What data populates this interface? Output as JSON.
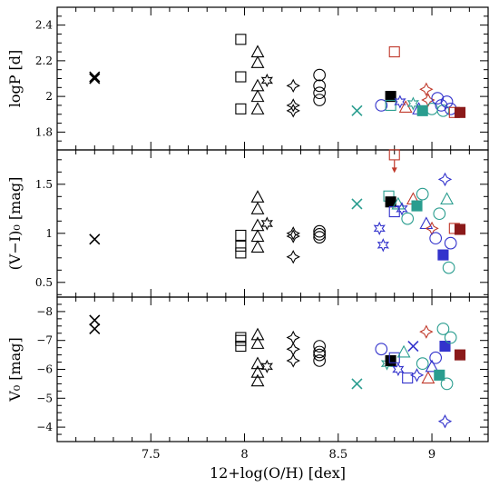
{
  "chart_data": [
    {
      "type": "scatter",
      "panel": "top",
      "ylabel": "logP [d]",
      "ylim": [
        1.7,
        2.5
      ],
      "yticks": [
        1.8,
        2.0,
        2.2,
        2.4
      ],
      "yticklabels": [
        "1.8",
        "2",
        "2.2",
        "2.4"
      ],
      "xlim": [
        7.0,
        9.3
      ],
      "points": [
        {
          "x": 7.2,
          "y": 2.11,
          "marker": "x",
          "color": "#000000"
        },
        {
          "x": 7.2,
          "y": 2.1,
          "marker": "x",
          "color": "#000000"
        },
        {
          "x": 7.98,
          "y": 2.32,
          "marker": "square",
          "color": "#000000"
        },
        {
          "x": 7.98,
          "y": 2.11,
          "marker": "square",
          "color": "#000000"
        },
        {
          "x": 7.98,
          "y": 1.93,
          "marker": "square",
          "color": "#000000"
        },
        {
          "x": 8.07,
          "y": 2.25,
          "marker": "triangle",
          "color": "#000000"
        },
        {
          "x": 8.07,
          "y": 2.19,
          "marker": "triangle",
          "color": "#000000"
        },
        {
          "x": 8.07,
          "y": 2.06,
          "marker": "triangle",
          "color": "#000000"
        },
        {
          "x": 8.07,
          "y": 2.0,
          "marker": "triangle",
          "color": "#000000"
        },
        {
          "x": 8.07,
          "y": 1.93,
          "marker": "triangle",
          "color": "#000000"
        },
        {
          "x": 8.12,
          "y": 2.09,
          "marker": "star6",
          "color": "#000000"
        },
        {
          "x": 8.26,
          "y": 2.06,
          "marker": "star4",
          "color": "#000000"
        },
        {
          "x": 8.26,
          "y": 1.95,
          "marker": "star4",
          "color": "#000000"
        },
        {
          "x": 8.26,
          "y": 1.92,
          "marker": "star4",
          "color": "#000000"
        },
        {
          "x": 8.4,
          "y": 2.12,
          "marker": "circle",
          "color": "#000000"
        },
        {
          "x": 8.4,
          "y": 2.06,
          "marker": "circle",
          "color": "#000000"
        },
        {
          "x": 8.4,
          "y": 2.02,
          "marker": "circle",
          "color": "#000000"
        },
        {
          "x": 8.4,
          "y": 1.98,
          "marker": "circle",
          "color": "#000000"
        },
        {
          "x": 8.6,
          "y": 1.92,
          "marker": "x",
          "color": "#2a9d8f"
        },
        {
          "x": 8.73,
          "y": 1.95,
          "marker": "circle",
          "color": "#3333cc"
        },
        {
          "x": 8.78,
          "y": 2.0,
          "marker": "filled-square",
          "color": "#000000"
        },
        {
          "x": 8.78,
          "y": 1.95,
          "marker": "square",
          "color": "#2a9d8f"
        },
        {
          "x": 8.8,
          "y": 2.25,
          "marker": "square",
          "color": "#c0392b"
        },
        {
          "x": 8.83,
          "y": 1.97,
          "marker": "star6",
          "color": "#3333cc"
        },
        {
          "x": 8.86,
          "y": 1.94,
          "marker": "triangle",
          "color": "#c0392b"
        },
        {
          "x": 8.9,
          "y": 1.96,
          "marker": "star6",
          "color": "#2a9d8f"
        },
        {
          "x": 8.93,
          "y": 1.93,
          "marker": "triangle",
          "color": "#3333cc"
        },
        {
          "x": 8.95,
          "y": 1.92,
          "marker": "filled-square",
          "color": "#2a9d8f"
        },
        {
          "x": 8.97,
          "y": 2.04,
          "marker": "star4",
          "color": "#c0392b"
        },
        {
          "x": 8.98,
          "y": 1.98,
          "marker": "star4",
          "color": "#c0392b"
        },
        {
          "x": 9.0,
          "y": 1.93,
          "marker": "circle",
          "color": "#2a9d8f"
        },
        {
          "x": 9.03,
          "y": 1.99,
          "marker": "circle",
          "color": "#3333cc"
        },
        {
          "x": 9.05,
          "y": 1.95,
          "marker": "circle",
          "color": "#3333cc"
        },
        {
          "x": 9.06,
          "y": 1.92,
          "marker": "circle",
          "color": "#2a9d8f"
        },
        {
          "x": 9.08,
          "y": 1.97,
          "marker": "circle",
          "color": "#3333cc"
        },
        {
          "x": 9.1,
          "y": 1.93,
          "marker": "circle",
          "color": "#3333cc"
        },
        {
          "x": 9.12,
          "y": 1.91,
          "marker": "square",
          "color": "#c0392b"
        },
        {
          "x": 9.15,
          "y": 1.91,
          "marker": "filled-square",
          "color": "#8b1a1a"
        }
      ]
    },
    {
      "type": "scatter",
      "panel": "middle",
      "ylabel": "(V−I)₀ [mag]",
      "ylim": [
        0.35,
        1.85
      ],
      "yticks": [
        0.5,
        1.0,
        1.5
      ],
      "yticklabels": [
        "0.5",
        "1",
        "1.5"
      ],
      "xlim": [
        7.0,
        9.3
      ],
      "points": [
        {
          "x": 7.2,
          "y": 0.94,
          "marker": "x",
          "color": "#000000"
        },
        {
          "x": 7.98,
          "y": 0.98,
          "marker": "square",
          "color": "#000000"
        },
        {
          "x": 7.98,
          "y": 0.87,
          "marker": "square",
          "color": "#000000"
        },
        {
          "x": 7.98,
          "y": 0.8,
          "marker": "square",
          "color": "#000000"
        },
        {
          "x": 8.07,
          "y": 1.37,
          "marker": "triangle",
          "color": "#000000"
        },
        {
          "x": 8.07,
          "y": 1.25,
          "marker": "triangle",
          "color": "#000000"
        },
        {
          "x": 8.07,
          "y": 1.08,
          "marker": "triangle",
          "color": "#000000"
        },
        {
          "x": 8.07,
          "y": 0.97,
          "marker": "triangle",
          "color": "#000000"
        },
        {
          "x": 8.07,
          "y": 0.86,
          "marker": "triangle",
          "color": "#000000"
        },
        {
          "x": 8.12,
          "y": 1.1,
          "marker": "star6",
          "color": "#000000"
        },
        {
          "x": 8.26,
          "y": 1.0,
          "marker": "star4",
          "color": "#000000"
        },
        {
          "x": 8.26,
          "y": 0.97,
          "marker": "star4",
          "color": "#000000"
        },
        {
          "x": 8.26,
          "y": 0.76,
          "marker": "star4",
          "color": "#000000"
        },
        {
          "x": 8.4,
          "y": 1.02,
          "marker": "circle",
          "color": "#000000"
        },
        {
          "x": 8.4,
          "y": 0.99,
          "marker": "circle",
          "color": "#000000"
        },
        {
          "x": 8.4,
          "y": 0.96,
          "marker": "circle",
          "color": "#000000"
        },
        {
          "x": 8.6,
          "y": 1.3,
          "marker": "x",
          "color": "#2a9d8f"
        },
        {
          "x": 8.72,
          "y": 1.05,
          "marker": "star6",
          "color": "#3333cc"
        },
        {
          "x": 8.74,
          "y": 0.88,
          "marker": "star6",
          "color": "#3333cc"
        },
        {
          "x": 8.77,
          "y": 1.38,
          "marker": "square",
          "color": "#2a9d8f"
        },
        {
          "x": 8.78,
          "y": 1.32,
          "marker": "filled-square",
          "color": "#000000"
        },
        {
          "x": 8.8,
          "y": 1.22,
          "marker": "square",
          "color": "#3333cc"
        },
        {
          "x": 8.8,
          "y": 1.8,
          "marker": "square",
          "color": "#c0392b"
        },
        {
          "x": 8.82,
          "y": 1.3,
          "marker": "triangle",
          "color": "#2a9d8f"
        },
        {
          "x": 8.84,
          "y": 1.25,
          "marker": "star6",
          "color": "#3333cc"
        },
        {
          "x": 8.87,
          "y": 1.15,
          "marker": "circle",
          "color": "#2a9d8f"
        },
        {
          "x": 8.9,
          "y": 1.35,
          "marker": "triangle",
          "color": "#c0392b"
        },
        {
          "x": 8.92,
          "y": 1.28,
          "marker": "filled-square",
          "color": "#2a9d8f"
        },
        {
          "x": 8.95,
          "y": 1.4,
          "marker": "circle",
          "color": "#2a9d8f"
        },
        {
          "x": 8.97,
          "y": 1.1,
          "marker": "triangle",
          "color": "#3333cc"
        },
        {
          "x": 9.0,
          "y": 1.05,
          "marker": "star4",
          "color": "#c0392b"
        },
        {
          "x": 9.02,
          "y": 0.95,
          "marker": "circle",
          "color": "#3333cc"
        },
        {
          "x": 9.04,
          "y": 1.2,
          "marker": "circle",
          "color": "#2a9d8f"
        },
        {
          "x": 9.06,
          "y": 0.78,
          "marker": "filled-square",
          "color": "#3333cc"
        },
        {
          "x": 9.07,
          "y": 1.55,
          "marker": "star4",
          "color": "#3333cc"
        },
        {
          "x": 9.08,
          "y": 1.35,
          "marker": "triangle",
          "color": "#2a9d8f"
        },
        {
          "x": 9.09,
          "y": 0.65,
          "marker": "circle",
          "color": "#2a9d8f"
        },
        {
          "x": 9.1,
          "y": 0.9,
          "marker": "circle",
          "color": "#3333cc"
        },
        {
          "x": 9.12,
          "y": 1.05,
          "marker": "square",
          "color": "#c0392b"
        },
        {
          "x": 9.15,
          "y": 1.04,
          "marker": "filled-square",
          "color": "#8b1a1a"
        }
      ]
    },
    {
      "type": "scatter",
      "panel": "bottom",
      "ylabel": "V₀ [mag]",
      "ylim": [
        -3.5,
        -8.5
      ],
      "yticks": [
        -4,
        -5,
        -6,
        -7,
        -8
      ],
      "yticklabels": [
        "−4",
        "−5",
        "−6",
        "−7",
        "−8"
      ],
      "xlim": [
        7.0,
        9.3
      ],
      "xticks": [
        7.5,
        8.0,
        8.5,
        9.0
      ],
      "xticklabels": [
        "7.5",
        "8",
        "8.5",
        "9"
      ],
      "xlabel": "12+log(O/H) [dex]",
      "points": [
        {
          "x": 7.2,
          "y": -7.7,
          "marker": "x",
          "color": "#000000"
        },
        {
          "x": 7.2,
          "y": -7.4,
          "marker": "x",
          "color": "#000000"
        },
        {
          "x": 7.98,
          "y": -7.1,
          "marker": "square",
          "color": "#000000"
        },
        {
          "x": 7.98,
          "y": -7.0,
          "marker": "square",
          "color": "#000000"
        },
        {
          "x": 7.98,
          "y": -6.8,
          "marker": "square",
          "color": "#000000"
        },
        {
          "x": 8.07,
          "y": -7.2,
          "marker": "triangle",
          "color": "#000000"
        },
        {
          "x": 8.07,
          "y": -6.9,
          "marker": "triangle",
          "color": "#000000"
        },
        {
          "x": 8.07,
          "y": -6.2,
          "marker": "triangle",
          "color": "#000000"
        },
        {
          "x": 8.07,
          "y": -5.9,
          "marker": "triangle",
          "color": "#000000"
        },
        {
          "x": 8.07,
          "y": -5.6,
          "marker": "triangle",
          "color": "#000000"
        },
        {
          "x": 8.12,
          "y": -6.1,
          "marker": "star6",
          "color": "#000000"
        },
        {
          "x": 8.26,
          "y": -7.1,
          "marker": "star4",
          "color": "#000000"
        },
        {
          "x": 8.26,
          "y": -6.7,
          "marker": "star4",
          "color": "#000000"
        },
        {
          "x": 8.26,
          "y": -6.3,
          "marker": "star4",
          "color": "#000000"
        },
        {
          "x": 8.4,
          "y": -6.8,
          "marker": "circle",
          "color": "#000000"
        },
        {
          "x": 8.4,
          "y": -6.6,
          "marker": "circle",
          "color": "#000000"
        },
        {
          "x": 8.4,
          "y": -6.5,
          "marker": "circle",
          "color": "#000000"
        },
        {
          "x": 8.4,
          "y": -6.3,
          "marker": "circle",
          "color": "#000000"
        },
        {
          "x": 8.6,
          "y": -5.5,
          "marker": "x",
          "color": "#2a9d8f"
        },
        {
          "x": 8.73,
          "y": -6.7,
          "marker": "circle",
          "color": "#3333cc"
        },
        {
          "x": 8.76,
          "y": -6.2,
          "marker": "star6",
          "color": "#2a9d8f"
        },
        {
          "x": 8.78,
          "y": -6.3,
          "marker": "filled-square",
          "color": "#000000"
        },
        {
          "x": 8.8,
          "y": -6.4,
          "marker": "square",
          "color": "#3333cc"
        },
        {
          "x": 8.82,
          "y": -6.0,
          "marker": "star6",
          "color": "#3333cc"
        },
        {
          "x": 8.85,
          "y": -6.6,
          "marker": "triangle",
          "color": "#2a9d8f"
        },
        {
          "x": 8.87,
          "y": -5.7,
          "marker": "square",
          "color": "#3333cc"
        },
        {
          "x": 8.9,
          "y": -6.8,
          "marker": "x",
          "color": "#3333cc"
        },
        {
          "x": 8.92,
          "y": -5.8,
          "marker": "star4",
          "color": "#3333cc"
        },
        {
          "x": 8.95,
          "y": -6.2,
          "marker": "circle",
          "color": "#2a9d8f"
        },
        {
          "x": 8.97,
          "y": -7.3,
          "marker": "star4",
          "color": "#c0392b"
        },
        {
          "x": 8.98,
          "y": -5.7,
          "marker": "triangle",
          "color": "#c0392b"
        },
        {
          "x": 9.0,
          "y": -6.1,
          "marker": "triangle",
          "color": "#3333cc"
        },
        {
          "x": 9.02,
          "y": -6.4,
          "marker": "circle",
          "color": "#3333cc"
        },
        {
          "x": 9.04,
          "y": -5.8,
          "marker": "filled-square",
          "color": "#2a9d8f"
        },
        {
          "x": 9.06,
          "y": -7.4,
          "marker": "circle",
          "color": "#2a9d8f"
        },
        {
          "x": 9.07,
          "y": -6.8,
          "marker": "filled-square",
          "color": "#3333cc"
        },
        {
          "x": 9.07,
          "y": -4.2,
          "marker": "star4",
          "color": "#3333cc"
        },
        {
          "x": 9.08,
          "y": -5.5,
          "marker": "circle",
          "color": "#2a9d8f"
        },
        {
          "x": 9.1,
          "y": -7.1,
          "marker": "circle",
          "color": "#2a9d8f"
        },
        {
          "x": 9.15,
          "y": -6.5,
          "marker": "filled-square",
          "color": "#8b1a1a"
        }
      ]
    }
  ]
}
